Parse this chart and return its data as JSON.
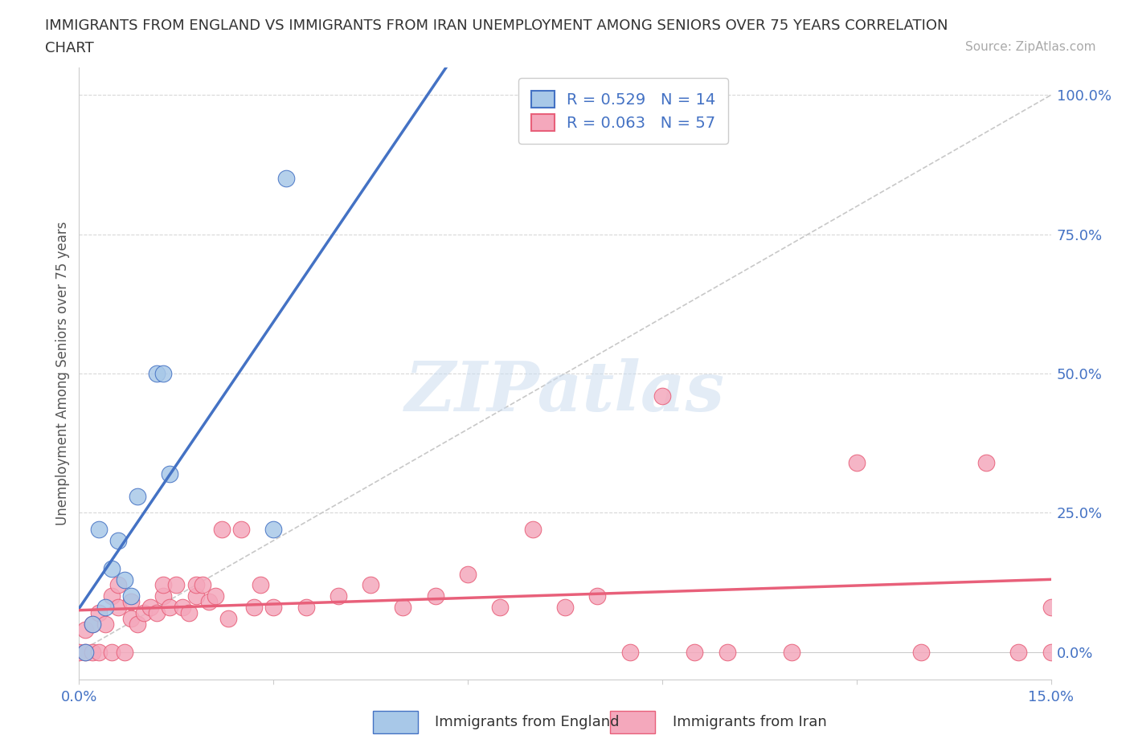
{
  "title_line1": "IMMIGRANTS FROM ENGLAND VS IMMIGRANTS FROM IRAN UNEMPLOYMENT AMONG SENIORS OVER 75 YEARS CORRELATION",
  "title_line2": "CHART",
  "source": "Source: ZipAtlas.com",
  "ylabel": "Unemployment Among Seniors over 75 years",
  "xlim": [
    0.0,
    0.15
  ],
  "ylim": [
    -0.05,
    1.05
  ],
  "ytick_right": [
    0.0,
    0.25,
    0.5,
    0.75,
    1.0
  ],
  "ytick_right_labels": [
    "0.0%",
    "25.0%",
    "50.0%",
    "75.0%",
    "100.0%"
  ],
  "england_color": "#a8c8e8",
  "iran_color": "#f4a8bc",
  "england_line_color": "#4472c4",
  "iran_line_color": "#e8607a",
  "diagonal_color": "#c8c8c8",
  "watermark": "ZIPatlas",
  "legend_R_england": "R = 0.529",
  "legend_N_england": "N = 14",
  "legend_R_iran": "R = 0.063",
  "legend_N_iran": "N = 57",
  "england_x": [
    0.001,
    0.002,
    0.003,
    0.004,
    0.005,
    0.006,
    0.007,
    0.008,
    0.009,
    0.012,
    0.013,
    0.014,
    0.03,
    0.032
  ],
  "england_y": [
    0.0,
    0.05,
    0.22,
    0.08,
    0.15,
    0.2,
    0.13,
    0.1,
    0.28,
    0.5,
    0.5,
    0.32,
    0.22,
    0.85
  ],
  "iran_x": [
    0.0,
    0.001,
    0.001,
    0.002,
    0.002,
    0.003,
    0.003,
    0.004,
    0.005,
    0.005,
    0.006,
    0.006,
    0.007,
    0.008,
    0.008,
    0.009,
    0.01,
    0.011,
    0.012,
    0.013,
    0.013,
    0.014,
    0.015,
    0.016,
    0.017,
    0.018,
    0.018,
    0.019,
    0.02,
    0.021,
    0.022,
    0.023,
    0.025,
    0.027,
    0.028,
    0.03,
    0.035,
    0.04,
    0.045,
    0.05,
    0.055,
    0.06,
    0.065,
    0.07,
    0.075,
    0.08,
    0.085,
    0.09,
    0.095,
    0.1,
    0.11,
    0.12,
    0.13,
    0.14,
    0.145,
    0.15,
    0.15
  ],
  "iran_y": [
    0.0,
    0.0,
    0.04,
    0.0,
    0.05,
    0.0,
    0.07,
    0.05,
    0.0,
    0.1,
    0.08,
    0.12,
    0.0,
    0.06,
    0.09,
    0.05,
    0.07,
    0.08,
    0.07,
    0.1,
    0.12,
    0.08,
    0.12,
    0.08,
    0.07,
    0.1,
    0.12,
    0.12,
    0.09,
    0.1,
    0.22,
    0.06,
    0.22,
    0.08,
    0.12,
    0.08,
    0.08,
    0.1,
    0.12,
    0.08,
    0.1,
    0.14,
    0.08,
    0.22,
    0.08,
    0.1,
    0.0,
    0.46,
    0.0,
    0.0,
    0.0,
    0.34,
    0.0,
    0.34,
    0.0,
    0.08,
    0.0
  ],
  "background_color": "#ffffff",
  "grid_color": "#d8d8d8",
  "title_fontsize": 13,
  "source_fontsize": 11,
  "tick_fontsize": 13,
  "ylabel_fontsize": 12
}
